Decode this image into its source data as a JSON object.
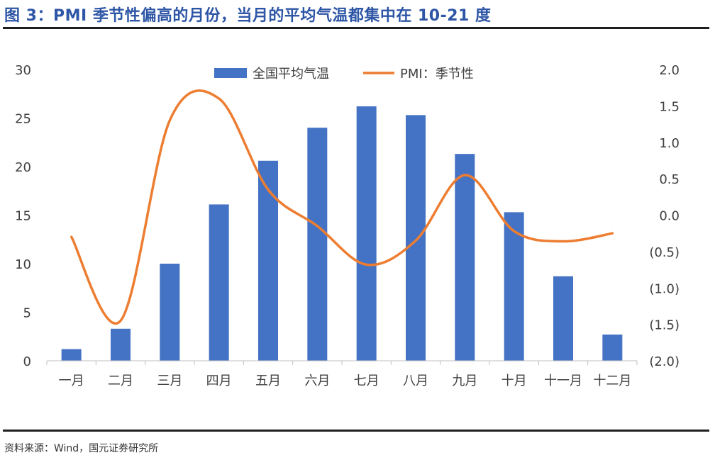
{
  "figure": {
    "title": "图 3：PMI 季节性偏高的月份，当月的平均气温都集中在 10-21 度",
    "source": "资料来源：Wind，国元证券研究所"
  },
  "colors": {
    "title": "#2E56A6",
    "bar": "#4472C4",
    "line": "#ED7D31",
    "negative_tick": "#C00000",
    "text": "#404040"
  },
  "chart_data": {
    "type": "bar",
    "categories": [
      "一月",
      "二月",
      "三月",
      "四月",
      "五月",
      "六月",
      "七月",
      "八月",
      "九月",
      "十月",
      "十一月",
      "十二月"
    ],
    "series": [
      {
        "name": "全国平均气温",
        "type": "bar",
        "axis": "left",
        "values": [
          1.2,
          3.3,
          10.0,
          16.1,
          20.6,
          24.0,
          26.2,
          25.3,
          21.3,
          15.3,
          8.7,
          2.7
        ]
      },
      {
        "name": "PMI：季节性",
        "type": "line",
        "smooth": true,
        "axis": "right",
        "values": [
          -0.3,
          -1.45,
          1.3,
          1.6,
          0.35,
          -0.15,
          -0.68,
          -0.35,
          0.55,
          -0.22,
          -0.36,
          -0.25
        ]
      }
    ],
    "y_left": {
      "lim": [
        0,
        30
      ],
      "ticks": [
        0,
        5,
        10,
        15,
        20,
        25,
        30
      ],
      "tick_labels": [
        "0",
        "5",
        "10",
        "15",
        "20",
        "25",
        "30"
      ]
    },
    "y_right": {
      "lim": [
        -2.0,
        2.0
      ],
      "ticks": [
        2.0,
        1.5,
        1.0,
        0.5,
        0.0,
        -0.5,
        -1.0,
        -1.5,
        -2.0
      ],
      "tick_labels": [
        "2.0",
        "1.5",
        "1.0",
        "0.5",
        "0.0",
        "(0.5)",
        "(1.0)",
        "(1.5)",
        "(2.0)"
      ]
    },
    "legend": {
      "position": "top",
      "entries": [
        "全国平均气温",
        "PMI：季节性"
      ]
    },
    "grid": false
  }
}
